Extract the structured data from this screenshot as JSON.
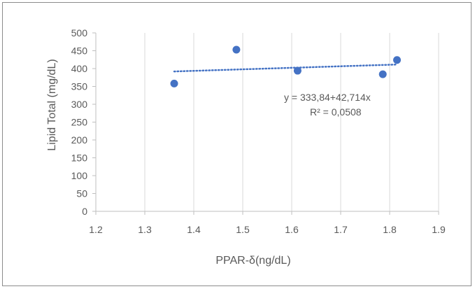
{
  "chart_data": {
    "type": "scatter",
    "title": "",
    "xlabel": "PPAR-δ(ng/dL)",
    "ylabel": "Lipid Total (mg/dL)",
    "xlim": [
      1.2,
      1.9
    ],
    "ylim": [
      0,
      500
    ],
    "x_ticks": [
      "1.2",
      "1.3",
      "1.4",
      "1.5",
      "1.6",
      "1.7",
      "1.8",
      "1.9"
    ],
    "y_ticks": [
      "0",
      "50",
      "100",
      "150",
      "200",
      "250",
      "300",
      "350",
      "400",
      "450",
      "500"
    ],
    "grid": "vertical-major",
    "legend": "none",
    "series": [
      {
        "x": [
          1.36,
          1.487,
          1.612,
          1.786,
          1.815
        ],
        "y": [
          358,
          453,
          394,
          384,
          424
        ]
      }
    ],
    "trendline": {
      "type": "linear",
      "style": "dotted",
      "intercept": 333.84,
      "slope": 42.714,
      "equation_label": "y = 333,84+42,714x",
      "r2_label": "R² = 0,0508"
    },
    "colors": {
      "marker": "#4472c4",
      "trendline": "#4472c4",
      "gridline": "#d9d9d9",
      "axis": "#bfbfbf",
      "text": "#595959"
    }
  }
}
